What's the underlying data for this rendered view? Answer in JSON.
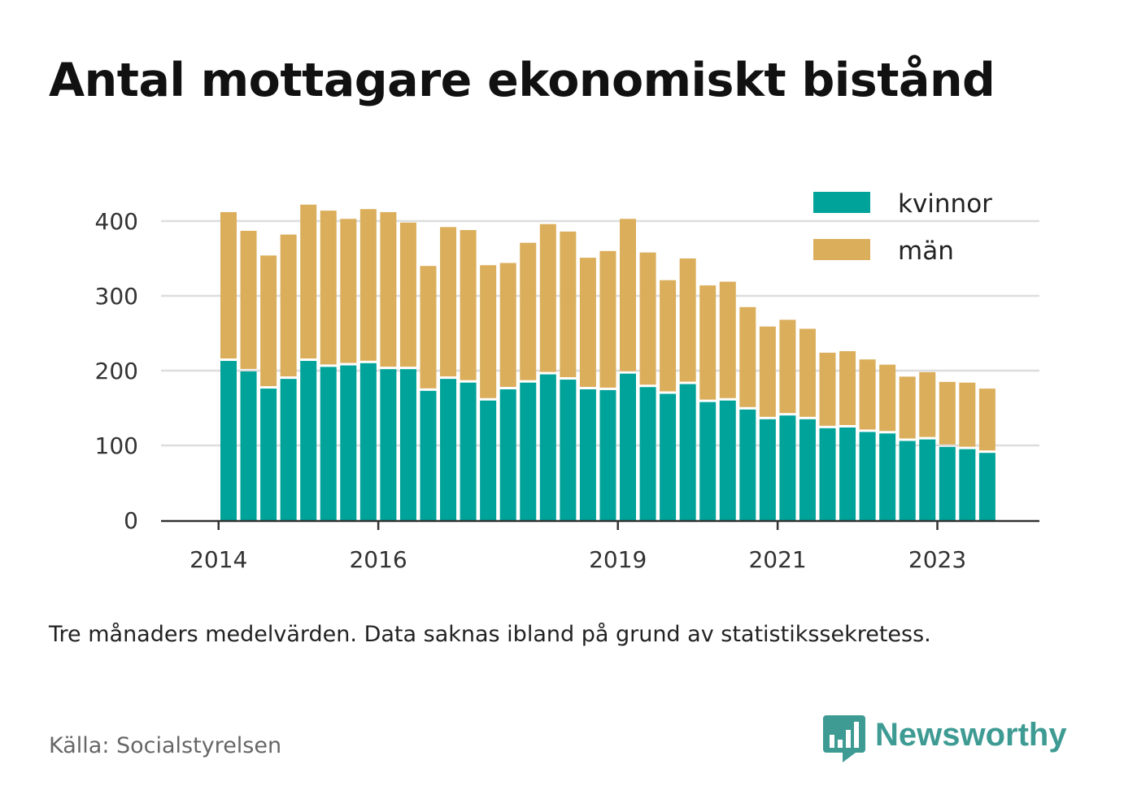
{
  "title": "Antal mottagare ekonomiskt bistånd",
  "note": "Tre månaders medelvärden. Data saknas ibland på grund av statistikssekretess.",
  "source": "Källa: Socialstyrelsen",
  "brand": {
    "name": "Newsworthy",
    "icon": "newsworthy-logo-icon",
    "color": "#3e9b93"
  },
  "colors": {
    "kvinnor": "#00a39a",
    "man": "#dbae5c",
    "grid": "#dddddd",
    "axis": "#333333"
  },
  "chart_data": {
    "type": "bar",
    "stacked": true,
    "title": "Antal mottagare ekonomiskt bistånd",
    "xlabel": "",
    "ylabel": "",
    "ylim": [
      0,
      400
    ],
    "yticks": [
      0,
      100,
      200,
      300,
      400
    ],
    "xtick_labels": [
      {
        "label": "2014",
        "position": 0
      },
      {
        "label": "2016",
        "position": 8
      },
      {
        "label": "2019",
        "position": 20
      },
      {
        "label": "2021",
        "position": 28
      },
      {
        "label": "2023",
        "position": 36
      }
    ],
    "legend_position": "top-right",
    "categories": [
      "2014-Q2",
      "2014-Q3",
      "2014-Q4",
      "2015-Q1",
      "2015-Q2",
      "2015-Q3",
      "2015-Q4",
      "2016-Q1",
      "2016-Q2",
      "2016-Q3",
      "2016-Q4",
      "2017-Q1",
      "2017-Q2",
      "2017-Q3",
      "2017-Q4",
      "2018-Q1",
      "2018-Q2",
      "2018-Q3",
      "2018-Q4",
      "2019-Q1",
      "2019-Q2",
      "2019-Q3",
      "2019-Q4",
      "2020-Q1",
      "2020-Q2",
      "2020-Q3",
      "2020-Q4",
      "2021-Q1",
      "2021-Q2",
      "2021-Q3",
      "2021-Q4",
      "2022-Q1",
      "2022-Q2",
      "2022-Q3",
      "2022-Q4",
      "2023-Q1",
      "2023-Q2",
      "2023-Q3",
      "2023-Q4"
    ],
    "series": [
      {
        "name": "kvinnor",
        "color": "#00a39a",
        "values": [
          213,
          199,
          176,
          189,
          213,
          205,
          207,
          210,
          202,
          202,
          173,
          189,
          184,
          160,
          175,
          184,
          195,
          188,
          175,
          174,
          196,
          178,
          169,
          182,
          158,
          160,
          148,
          135,
          140,
          135,
          123,
          124,
          118,
          116,
          106,
          108,
          98,
          95,
          90
        ]
      },
      {
        "name": "män",
        "color": "#dbae5c",
        "values": [
          199,
          188,
          178,
          193,
          209,
          209,
          196,
          206,
          210,
          196,
          167,
          203,
          204,
          181,
          169,
          187,
          201,
          198,
          176,
          186,
          207,
          180,
          152,
          168,
          156,
          159,
          137,
          124,
          128,
          121,
          101,
          102,
          97,
          92,
          86,
          90,
          87,
          89,
          86
        ]
      }
    ]
  }
}
